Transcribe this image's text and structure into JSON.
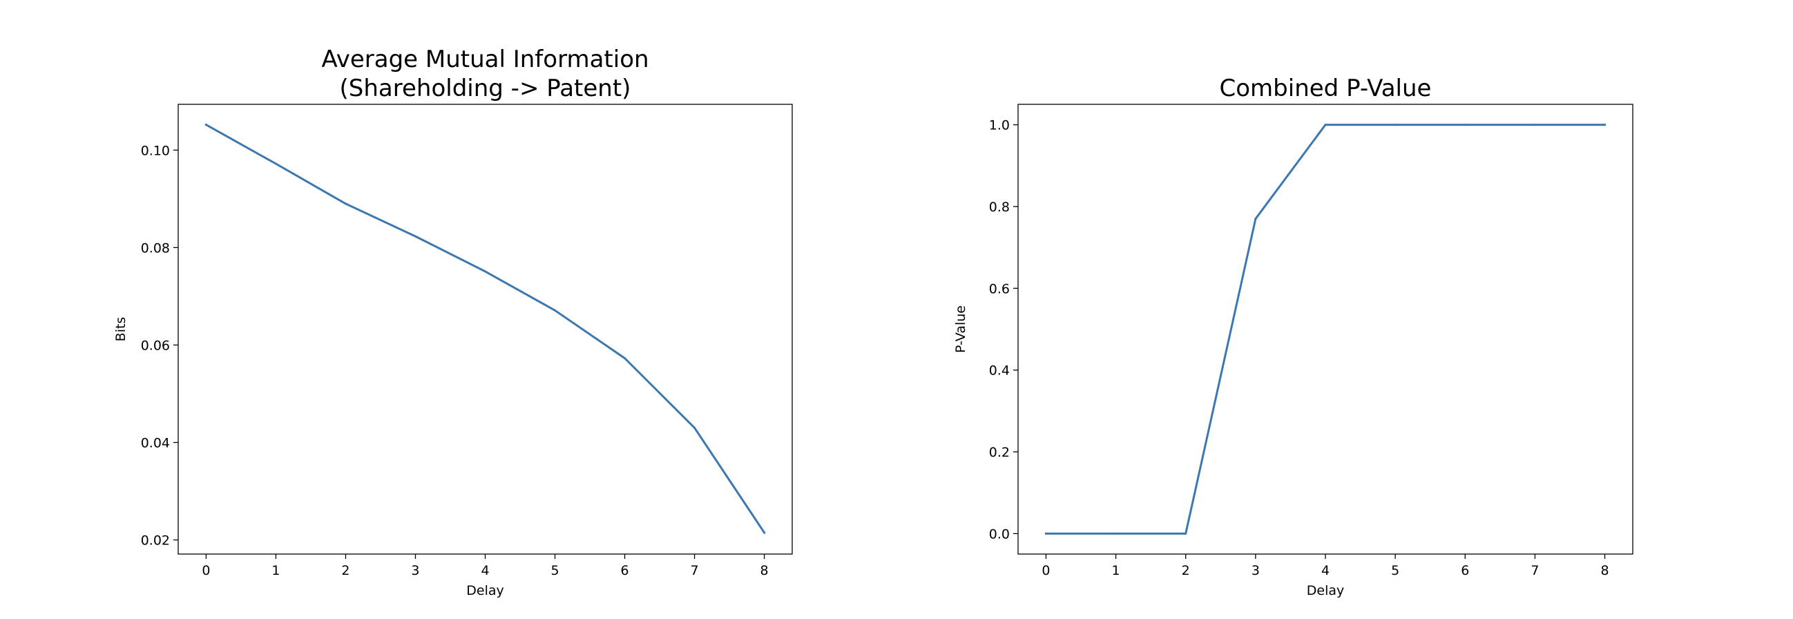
{
  "chart_data": [
    {
      "type": "line",
      "title": "Average Mutual Information\n(Shareholding -> Patent)",
      "xlabel": "Delay",
      "ylabel": "Bits",
      "x": [
        0,
        1,
        2,
        3,
        4,
        5,
        6,
        7,
        8
      ],
      "series": [
        {
          "values": [
            0.1052,
            0.0972,
            0.089,
            0.0823,
            0.0751,
            0.0671,
            0.0573,
            0.043,
            0.0215
          ],
          "color": "#3b78b0"
        }
      ],
      "xlim": [
        -0.4,
        8.4
      ],
      "ylim": [
        0.0171,
        0.1094
      ],
      "xticks": [
        0,
        1,
        2,
        3,
        4,
        5,
        6,
        7,
        8
      ],
      "xtick_labels": [
        "0",
        "1",
        "2",
        "3",
        "4",
        "5",
        "6",
        "7",
        "8"
      ],
      "yticks": [
        0.02,
        0.04,
        0.06,
        0.08,
        0.1
      ],
      "ytick_labels": [
        "0.02",
        "0.04",
        "0.06",
        "0.08",
        "0.10"
      ],
      "grid": false
    },
    {
      "type": "line",
      "title": "Combined P-Value",
      "xlabel": "Delay",
      "ylabel": "P-Value",
      "x": [
        0,
        1,
        2,
        3,
        4,
        5,
        6,
        7,
        8
      ],
      "series": [
        {
          "values": [
            0.0,
            0.0,
            0.0,
            0.77,
            1.0,
            1.0,
            1.0,
            1.0,
            1.0
          ],
          "color": "#3b78b0"
        }
      ],
      "xlim": [
        -0.4,
        8.4
      ],
      "ylim": [
        -0.05,
        1.05
      ],
      "xticks": [
        0,
        1,
        2,
        3,
        4,
        5,
        6,
        7,
        8
      ],
      "xtick_labels": [
        "0",
        "1",
        "2",
        "3",
        "4",
        "5",
        "6",
        "7",
        "8"
      ],
      "yticks": [
        0.0,
        0.2,
        0.4,
        0.6,
        0.8,
        1.0
      ],
      "ytick_labels": [
        "0.0",
        "0.2",
        "0.4",
        "0.6",
        "0.8",
        "1.0"
      ],
      "grid": false
    }
  ]
}
